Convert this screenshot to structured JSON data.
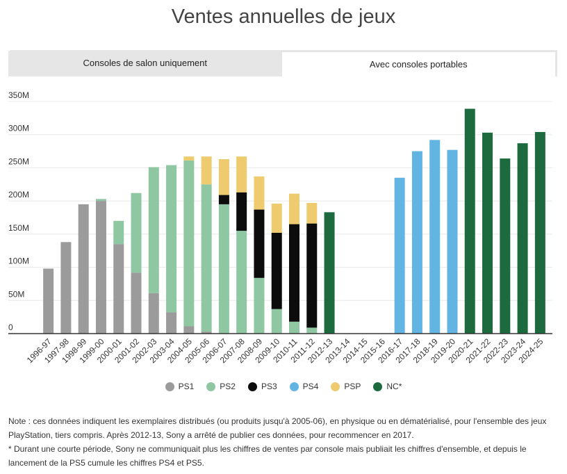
{
  "title": "Ventes annuelles de jeux",
  "tabs": [
    {
      "label": "Consoles de salon uniquement",
      "active": false
    },
    {
      "label": "Avec consoles portables",
      "active": true
    }
  ],
  "colors": {
    "PS1": "#9b9b9b",
    "PS2": "#8fc7a3",
    "PS3": "#0c0c0c",
    "PS4": "#62b4e3",
    "PSP": "#edcb6e",
    "NC*": "#1d6a3f",
    "grid": "#e8e8e8",
    "axis": "#333333"
  },
  "legend": [
    "PS1",
    "PS2",
    "PS3",
    "PS4",
    "PSP",
    "NC*"
  ],
  "chart_data": {
    "type": "bar",
    "stacked": true,
    "title": "Ventes annuelles de jeux",
    "xlabel": "",
    "ylabel": "",
    "ylim": [
      0,
      350
    ],
    "yticks": [
      0,
      50,
      100,
      150,
      200,
      250,
      300,
      350
    ],
    "ytick_labels": [
      "0",
      "50M",
      "100M",
      "150M",
      "200M",
      "250M",
      "300M",
      "350M"
    ],
    "grid": true,
    "categories": [
      "1996-97",
      "1997-98",
      "1998-99",
      "1999-00",
      "2000-01",
      "2001-02",
      "2002-03",
      "2003-04",
      "2004-05",
      "2005-06",
      "2006-07",
      "2007-08",
      "2008-09",
      "2009-10",
      "2010-11",
      "2011-12",
      "2012-13",
      "2013-14",
      "2014-15",
      "2015-16",
      "2016-17",
      "2017-18",
      "2018-19",
      "2019-20",
      "2020-21",
      "2021-22",
      "2022-23",
      "2023-24",
      "2024-25"
    ],
    "series": [
      {
        "name": "PS1",
        "values": [
          98,
          138,
          195,
          200,
          135,
          92,
          61,
          32,
          11,
          3,
          0,
          0,
          0,
          0,
          0,
          0,
          0,
          0,
          0,
          0,
          0,
          0,
          0,
          0,
          0,
          0,
          0,
          0,
          0
        ]
      },
      {
        "name": "PS2",
        "values": [
          0,
          0,
          0,
          3,
          35,
          120,
          190,
          222,
          250,
          222,
          195,
          155,
          84,
          37,
          18,
          9,
          0,
          0,
          0,
          0,
          0,
          0,
          0,
          0,
          0,
          0,
          0,
          0,
          0
        ]
      },
      {
        "name": "PS3",
        "values": [
          0,
          0,
          0,
          0,
          0,
          0,
          0,
          0,
          0,
          0,
          14,
          58,
          103,
          115,
          147,
          157,
          0,
          0,
          0,
          0,
          0,
          0,
          0,
          0,
          0,
          0,
          0,
          0,
          0
        ]
      },
      {
        "name": "PS4",
        "values": [
          0,
          0,
          0,
          0,
          0,
          0,
          0,
          0,
          0,
          0,
          0,
          0,
          0,
          0,
          0,
          0,
          0,
          0,
          0,
          0,
          235,
          275,
          292,
          277,
          0,
          0,
          0,
          0,
          0
        ]
      },
      {
        "name": "PSP",
        "values": [
          0,
          0,
          0,
          0,
          0,
          0,
          0,
          0,
          6,
          42,
          54,
          54,
          50,
          44,
          46,
          31,
          0,
          0,
          0,
          0,
          0,
          0,
          0,
          0,
          0,
          0,
          0,
          0,
          0
        ]
      },
      {
        "name": "NC*",
        "values": [
          0,
          0,
          0,
          0,
          0,
          0,
          0,
          0,
          0,
          0,
          0,
          0,
          0,
          0,
          0,
          0,
          183,
          0,
          0,
          0,
          0,
          0,
          0,
          0,
          339,
          303,
          264,
          287,
          304
        ]
      }
    ]
  },
  "note": {
    "line1": "Note : ces données indiquent les exemplaires distribués (ou produits jusqu'à 2005-06), en physique ou en dématérialisé, pour l'ensemble des jeux PlayStation, tiers compris. Après 2012-13, Sony a arrêté de publier ces données, pour recommencer en 2017.",
    "line2": "* Durant une courte période, Sony ne communiquait plus les chiffres de ventes par console mais publiait les chiffres d'ensemble, et depuis le lancement de la PS5 cumule les chiffres PS4 et PS5."
  }
}
